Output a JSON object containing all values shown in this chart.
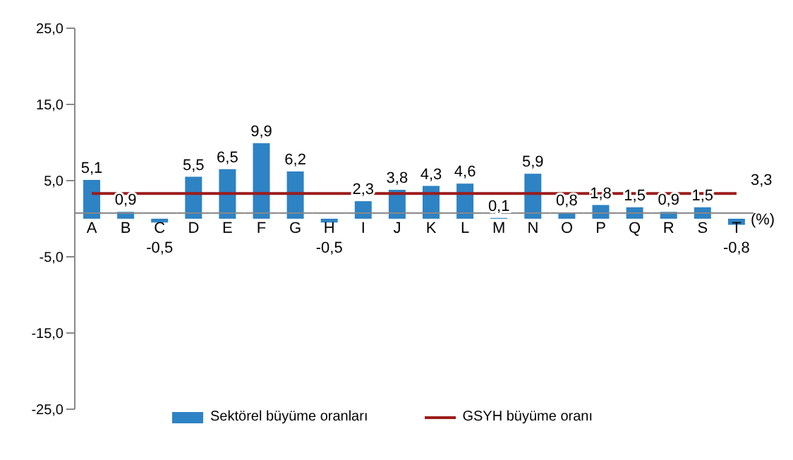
{
  "chart_data": {
    "type": "bar",
    "categories": [
      "A",
      "B",
      "C",
      "D",
      "E",
      "F",
      "G",
      "H",
      "I",
      "J",
      "K",
      "L",
      "M",
      "N",
      "O",
      "P",
      "Q",
      "R",
      "S",
      "T"
    ],
    "series": [
      {
        "name": "Sektörel büyüme oranları",
        "color": "#2e83c4",
        "values": [
          5.1,
          0.9,
          -0.5,
          5.5,
          6.5,
          9.9,
          6.2,
          -0.5,
          2.3,
          3.8,
          4.3,
          4.6,
          0.1,
          5.9,
          0.8,
          1.8,
          1.5,
          0.9,
          1.5,
          -0.8
        ],
        "value_labels": [
          "5,1",
          "0,9",
          "-0,5",
          "5,5",
          "6,5",
          "9,9",
          "6,2",
          "-0,5",
          "2,3",
          "3,8",
          "4,3",
          "4,6",
          "0,1",
          "5,9",
          "0,8",
          "1,8",
          "1,5",
          "0,9",
          "1,5",
          "-0,8"
        ]
      },
      {
        "name": "GSYH büyüme oranı",
        "type": "line",
        "color": "#9b1c1c",
        "values": [
          3.3,
          3.3,
          3.3,
          3.3,
          3.3,
          3.3,
          3.3,
          3.3,
          3.3,
          3.3,
          3.3,
          3.3,
          3.3,
          3.3,
          3.3,
          3.3,
          3.3,
          3.3,
          3.3,
          3.3
        ],
        "value_labels": [
          null,
          null,
          null,
          null,
          null,
          null,
          null,
          null,
          null,
          null,
          null,
          null,
          null,
          null,
          null,
          null,
          null,
          null,
          null,
          "3,3"
        ]
      }
    ],
    "ylim": [
      -25,
      25
    ],
    "yticks": [
      {
        "value": -25,
        "label": "-25,0"
      },
      {
        "value": -15,
        "label": "-15,0"
      },
      {
        "value": -5,
        "label": "-5,0"
      },
      {
        "value": 5,
        "label": "5,0"
      },
      {
        "value": 15,
        "label": "15,0"
      },
      {
        "value": 25,
        "label": "25,0"
      }
    ],
    "annotations": [
      {
        "text": "(%)",
        "x": "T",
        "y": 0
      }
    ],
    "legend": "bottom",
    "grid": false,
    "marker": "none"
  }
}
